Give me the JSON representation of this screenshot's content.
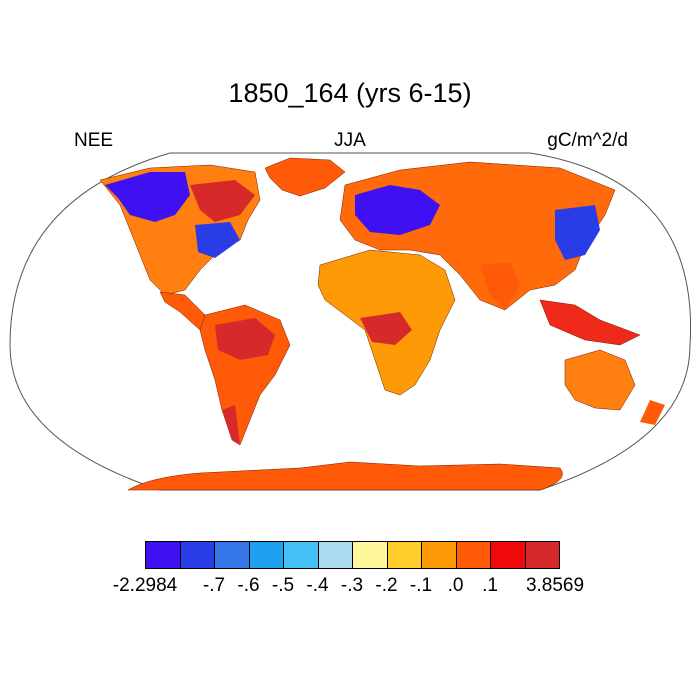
{
  "title": "1850_164 (yrs 6-15)",
  "left_string": "NEE",
  "center_string": "JJA",
  "right_string": "gC/m^2/d",
  "colorbar": {
    "colors": [
      "#3f11f2",
      "#2a3ce6",
      "#3576e8",
      "#1ca0ef",
      "#44c0f5",
      "#a9daef",
      "#fff89a",
      "#ffcc2c",
      "#ff9a07",
      "#ff5a07",
      "#ef0909",
      "#d62a2a"
    ],
    "labels": [
      "-2.2984",
      "-.7",
      "-.6",
      "-.5",
      "-.4",
      "-.3",
      "-.2",
      "-.1",
      ".0",
      ".1",
      "3.8569"
    ]
  },
  "regions": [
    {
      "name": "antarctica",
      "color": "#ff5a07"
    },
    {
      "name": "greenland",
      "color": "#ff5a07"
    },
    {
      "name": "north-america",
      "color": "#ff7f10"
    },
    {
      "name": "canada-boreal",
      "color": "#3f11f2"
    },
    {
      "name": "eastern-us",
      "color": "#2a3ce6"
    },
    {
      "name": "hudson-region",
      "color": "#d62a2a"
    },
    {
      "name": "central-america",
      "color": "#ff5a07"
    },
    {
      "name": "south-america",
      "color": "#ff5a07"
    },
    {
      "name": "amazon",
      "color": "#d62a2a"
    },
    {
      "name": "europe-asia",
      "color": "#ff6a0a"
    },
    {
      "name": "europe-boreal",
      "color": "#3f11f2"
    },
    {
      "name": "east-asia",
      "color": "#2a3ce6"
    },
    {
      "name": "africa",
      "color": "#ff9a07"
    },
    {
      "name": "central-africa",
      "color": "#d62a2a"
    },
    {
      "name": "india",
      "color": "#ff5a07"
    },
    {
      "name": "southeast-asia",
      "color": "#ef2a1a"
    },
    {
      "name": "australia",
      "color": "#ff7f10"
    }
  ]
}
